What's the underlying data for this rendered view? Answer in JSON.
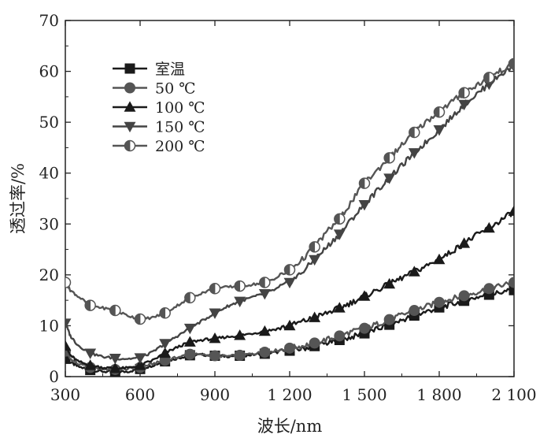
{
  "chart_data": {
    "type": "line",
    "title": "",
    "xlabel": "波长/nm",
    "ylabel": "透过率/%",
    "xlim": [
      300,
      2100
    ],
    "ylim": [
      0,
      70
    ],
    "xticks": [
      300,
      600,
      900,
      1200,
      1500,
      1800,
      2100
    ],
    "xtick_labels": [
      "300",
      "600",
      "900",
      "1 200",
      "1 500",
      "1 800",
      "2 100"
    ],
    "yticks": [
      0,
      10,
      20,
      30,
      40,
      50,
      60,
      70
    ],
    "ytick_labels": [
      "0",
      "10",
      "20",
      "30",
      "40",
      "50",
      "60",
      "70"
    ],
    "grid": false,
    "legend_position": "top-left",
    "series": [
      {
        "name": "室温",
        "marker": "square",
        "color": "#1a1a1a",
        "x": [
          300,
          320,
          350,
          400,
          450,
          500,
          550,
          600,
          650,
          700,
          750,
          800,
          850,
          900,
          950,
          1000,
          1050,
          1100,
          1150,
          1200,
          1250,
          1300,
          1350,
          1400,
          1450,
          1500,
          1550,
          1600,
          1650,
          1700,
          1750,
          1800,
          1850,
          1900,
          1950,
          2000,
          2050,
          2100
        ],
        "y": [
          3.5,
          2.8,
          2.0,
          1.3,
          1.0,
          0.9,
          1.0,
          1.5,
          2.2,
          3.0,
          3.6,
          4.2,
          4.3,
          4.1,
          4.0,
          4.1,
          4.3,
          4.5,
          4.8,
          5.1,
          5.5,
          6.0,
          6.6,
          7.2,
          7.8,
          8.5,
          9.3,
          10.2,
          11.1,
          12.0,
          12.8,
          13.6,
          14.2,
          14.9,
          15.6,
          16.1,
          16.6,
          17.0
        ],
        "markers_x": [
          300,
          400,
          500,
          600,
          700,
          800,
          900,
          1000,
          1100,
          1200,
          1300,
          1400,
          1500,
          1600,
          1700,
          1800,
          1900,
          2000,
          2100
        ]
      },
      {
        "name": "50 ℃",
        "marker": "circle",
        "color": "#555555",
        "x": [
          300,
          320,
          350,
          400,
          450,
          500,
          550,
          600,
          650,
          700,
          750,
          800,
          850,
          900,
          950,
          1000,
          1050,
          1100,
          1150,
          1200,
          1250,
          1300,
          1350,
          1400,
          1450,
          1500,
          1550,
          1600,
          1650,
          1700,
          1750,
          1800,
          1850,
          1900,
          1950,
          2000,
          2050,
          2100
        ],
        "y": [
          5.0,
          3.5,
          2.5,
          1.8,
          1.5,
          1.4,
          1.5,
          1.8,
          2.5,
          3.2,
          3.8,
          4.4,
          4.3,
          4.1,
          4.0,
          4.2,
          4.5,
          4.8,
          5.2,
          5.6,
          6.0,
          6.6,
          7.3,
          8.0,
          8.8,
          9.5,
          10.3,
          11.2,
          12.1,
          13.0,
          13.8,
          14.6,
          15.3,
          15.9,
          16.6,
          17.3,
          17.9,
          18.5
        ],
        "markers_x": [
          300,
          400,
          500,
          600,
          700,
          800,
          900,
          1000,
          1100,
          1200,
          1300,
          1400,
          1500,
          1600,
          1700,
          1800,
          1900,
          2000,
          2100
        ]
      },
      {
        "name": "100 ℃",
        "marker": "triangle-up",
        "color": "#1a1a1a",
        "x": [
          300,
          320,
          350,
          400,
          450,
          500,
          550,
          600,
          650,
          700,
          750,
          800,
          850,
          900,
          950,
          1000,
          1050,
          1100,
          1150,
          1200,
          1250,
          1300,
          1350,
          1400,
          1450,
          1500,
          1550,
          1600,
          1650,
          1700,
          1750,
          1800,
          1850,
          1900,
          1950,
          2000,
          2050,
          2100
        ],
        "y": [
          6.0,
          4.2,
          3.0,
          2.2,
          1.8,
          1.6,
          1.7,
          2.2,
          3.2,
          4.6,
          5.8,
          6.8,
          7.2,
          7.5,
          7.8,
          8.1,
          8.5,
          8.9,
          9.4,
          10.0,
          10.8,
          11.6,
          12.5,
          13.5,
          14.6,
          15.8,
          17.0,
          18.2,
          19.4,
          20.6,
          21.8,
          23.0,
          24.6,
          26.2,
          27.8,
          29.2,
          30.8,
          32.5
        ],
        "markers_x": [
          300,
          400,
          500,
          600,
          700,
          800,
          900,
          1000,
          1100,
          1200,
          1300,
          1400,
          1500,
          1600,
          1700,
          1800,
          1900,
          2000,
          2100
        ]
      },
      {
        "name": "150 ℃",
        "marker": "triangle-down",
        "color": "#444444",
        "x": [
          300,
          320,
          350,
          400,
          450,
          500,
          550,
          600,
          650,
          700,
          750,
          800,
          850,
          900,
          950,
          1000,
          1050,
          1100,
          1150,
          1200,
          1250,
          1300,
          1350,
          1400,
          1450,
          1500,
          1550,
          1600,
          1650,
          1700,
          1750,
          1800,
          1850,
          1900,
          1950,
          2000,
          2050,
          2100
        ],
        "y": [
          10.5,
          8.0,
          6.2,
          4.6,
          3.9,
          3.6,
          3.5,
          3.7,
          4.8,
          6.5,
          8.0,
          9.5,
          11.0,
          12.5,
          13.8,
          14.8,
          15.6,
          16.3,
          17.3,
          18.5,
          20.5,
          23.0,
          25.5,
          28.0,
          31.0,
          33.8,
          36.5,
          39.0,
          41.5,
          44.0,
          46.2,
          48.5,
          51.0,
          53.5,
          55.5,
          57.5,
          59.5,
          61.0
        ],
        "markers_x": [
          300,
          400,
          500,
          600,
          700,
          800,
          900,
          1000,
          1100,
          1200,
          1300,
          1400,
          1500,
          1600,
          1700,
          1800,
          1900,
          2000,
          2100
        ]
      },
      {
        "name": "200 ℃",
        "marker": "half-circle",
        "color": "#555555",
        "x": [
          300,
          320,
          350,
          400,
          450,
          500,
          550,
          600,
          650,
          700,
          750,
          800,
          850,
          900,
          950,
          1000,
          1050,
          1100,
          1150,
          1200,
          1250,
          1300,
          1350,
          1400,
          1450,
          1500,
          1550,
          1600,
          1650,
          1700,
          1750,
          1800,
          1850,
          1900,
          1950,
          2000,
          2050,
          2100
        ],
        "y": [
          18.5,
          17.0,
          15.8,
          14.0,
          13.5,
          13.0,
          12.0,
          11.3,
          11.6,
          12.5,
          14.0,
          15.5,
          16.5,
          17.3,
          17.6,
          17.8,
          18.1,
          18.5,
          19.5,
          21.0,
          23.0,
          25.5,
          28.5,
          31.0,
          34.5,
          38.0,
          40.5,
          43.0,
          45.5,
          48.0,
          50.2,
          52.0,
          54.0,
          55.8,
          57.3,
          58.8,
          60.2,
          61.5
        ],
        "markers_x": [
          300,
          400,
          500,
          600,
          700,
          800,
          900,
          1000,
          1100,
          1200,
          1300,
          1400,
          1500,
          1600,
          1700,
          1800,
          1900,
          2000,
          2100
        ]
      }
    ]
  }
}
